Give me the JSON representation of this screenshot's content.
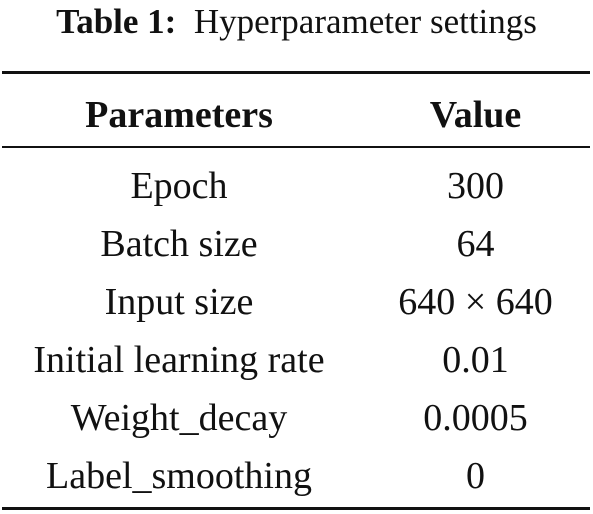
{
  "table": {
    "caption_label": "Table 1:",
    "caption_text": "Hyperparameter settings",
    "headers": {
      "parameter": "Parameters",
      "value": "Value"
    },
    "rows": [
      {
        "parameter": "Epoch",
        "value": "300"
      },
      {
        "parameter": "Batch size",
        "value": "64"
      },
      {
        "parameter": "Input size",
        "value": "640 × 640"
      },
      {
        "parameter": "Initial learning rate",
        "value": "0.01"
      },
      {
        "parameter": "Weight_decay",
        "value": "0.0005"
      },
      {
        "parameter": "Label_smoothing",
        "value": "0"
      }
    ]
  }
}
